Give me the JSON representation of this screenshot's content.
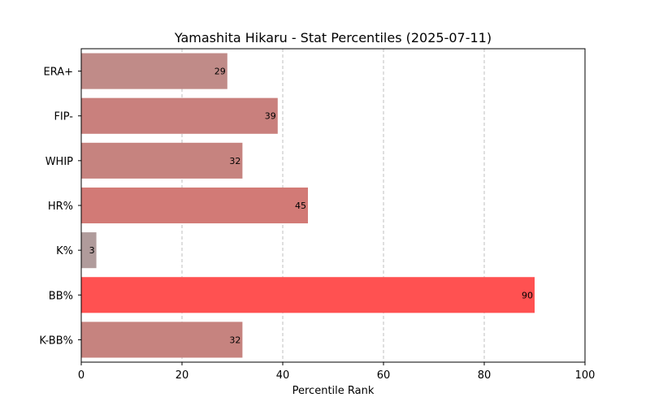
{
  "chart_data": {
    "type": "bar",
    "orientation": "horizontal",
    "title": "Yamashita Hikaru - Stat Percentiles (2025-07-11)",
    "xlabel": "Percentile Rank",
    "ylabel": "",
    "xlim": [
      0,
      100
    ],
    "xticks": [
      0,
      20,
      40,
      60,
      80,
      100
    ],
    "grid": "x-dashed",
    "categories": [
      "ERA+",
      "FIP-",
      "WHIP",
      "HR%",
      "K%",
      "BB%",
      "K-BB%"
    ],
    "values": [
      29,
      39,
      32,
      45,
      3,
      90,
      32
    ],
    "colors": [
      "#c08b88",
      "#c9807d",
      "#c6837f",
      "#d27a76",
      "#b09b9b",
      "#ff5151",
      "#c6837f"
    ]
  }
}
